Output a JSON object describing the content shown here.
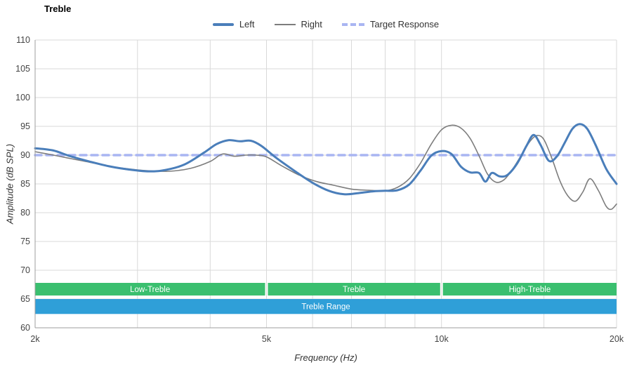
{
  "title": "Treble",
  "legend": [
    {
      "label": "Left"
    },
    {
      "label": "Right"
    },
    {
      "label": "Target Response"
    }
  ],
  "chart_data": {
    "type": "line",
    "title": "Treble",
    "xlabel": "Frequency (Hz)",
    "ylabel": "Amplitude (dB SPL)",
    "x_scale": "log",
    "xlim": [
      2000,
      20000
    ],
    "ylim": [
      60,
      110
    ],
    "y_ticks": [
      60,
      65,
      70,
      75,
      80,
      85,
      90,
      95,
      100,
      105,
      110
    ],
    "x_ticks": [
      {
        "v": 2000,
        "label": "2k"
      },
      {
        "v": 5000,
        "label": "5k"
      },
      {
        "v": 10000,
        "label": "10k"
      },
      {
        "v": 20000,
        "label": "20k"
      }
    ],
    "x_gridlines": [
      3000,
      4000,
      5000,
      6000,
      7000,
      8000,
      9000,
      10000,
      15000,
      20000
    ],
    "grid": true,
    "legend_position": "top",
    "colors": {
      "left": "#4a7eba",
      "right": "#7d7d7d",
      "target": "#a9b5f2",
      "band_green": "#3abf6f",
      "band_blue": "#2f9fd8",
      "grid": "#d9d9d9",
      "axis": "#9e9e9e",
      "text": "#444444"
    },
    "series": [
      {
        "name": "Left",
        "color": "#4a7eba",
        "width": 3,
        "x": [
          2000,
          2150,
          2300,
          2500,
          2700,
          2900,
          3100,
          3300,
          3600,
          3900,
          4100,
          4300,
          4500,
          4700,
          4900,
          5200,
          5600,
          6000,
          6400,
          6800,
          7200,
          7600,
          8000,
          8400,
          8800,
          9200,
          9600,
          10000,
          10400,
          10800,
          11200,
          11600,
          11900,
          12200,
          12600,
          13000,
          13500,
          14000,
          14400,
          14800,
          15300,
          15800,
          16300,
          16800,
          17300,
          17800,
          18400,
          19200,
          20000
        ],
        "y": [
          91.2,
          90.8,
          89.8,
          88.8,
          88.0,
          87.5,
          87.2,
          87.3,
          88.3,
          90.4,
          91.9,
          92.6,
          92.4,
          92.5,
          91.6,
          89.5,
          87.2,
          85.2,
          83.8,
          83.2,
          83.4,
          83.7,
          83.8,
          83.9,
          84.9,
          87.3,
          89.9,
          90.7,
          90.2,
          88.0,
          87.0,
          86.9,
          85.4,
          86.9,
          86.3,
          86.6,
          88.6,
          91.6,
          93.5,
          91.8,
          89.0,
          89.8,
          92.2,
          94.6,
          95.4,
          94.6,
          91.8,
          87.6,
          85.0
        ]
      },
      {
        "name": "Right",
        "color": "#7d7d7d",
        "width": 1.6,
        "x": [
          2000,
          2150,
          2300,
          2500,
          2700,
          2900,
          3100,
          3400,
          3700,
          4000,
          4200,
          4400,
          4600,
          4800,
          5000,
          5300,
          5700,
          6100,
          6500,
          7000,
          7500,
          8000,
          8400,
          8800,
          9200,
          9600,
          10000,
          10400,
          10800,
          11200,
          11600,
          12000,
          12400,
          12800,
          13200,
          13700,
          14200,
          14600,
          15000,
          15500,
          16000,
          16500,
          17000,
          17500,
          18000,
          18600,
          19200,
          19600,
          20000
        ],
        "y": [
          90.6,
          90.0,
          89.4,
          88.7,
          88.0,
          87.6,
          87.3,
          87.2,
          87.7,
          88.9,
          90.2,
          89.8,
          90.0,
          90.0,
          89.7,
          88.2,
          86.5,
          85.4,
          84.8,
          84.1,
          83.9,
          83.8,
          84.4,
          85.9,
          88.6,
          91.9,
          94.4,
          95.2,
          94.7,
          92.9,
          89.9,
          86.7,
          85.3,
          85.7,
          87.3,
          89.9,
          92.4,
          93.4,
          92.7,
          89.3,
          85.4,
          82.9,
          82.0,
          83.6,
          85.9,
          83.9,
          81.1,
          80.6,
          81.5
        ]
      },
      {
        "name": "Target Response",
        "color": "#a9b5f2",
        "width": 3.5,
        "dash": "9 7",
        "x": [
          2000,
          20000
        ],
        "y": [
          90,
          90
        ]
      }
    ],
    "bands": [
      {
        "label": "Low-Treble",
        "from": 2000,
        "to": 5000,
        "y0": 65.6,
        "y1": 67.8,
        "color": "#3abf6f"
      },
      {
        "label": "Treble",
        "from": 5000,
        "to": 10000,
        "y0": 65.6,
        "y1": 67.8,
        "color": "#3abf6f"
      },
      {
        "label": "High-Treble",
        "from": 10000,
        "to": 20000,
        "y0": 65.6,
        "y1": 67.8,
        "color": "#3abf6f"
      },
      {
        "label": "Treble Range",
        "from": 2000,
        "to": 20000,
        "y0": 62.4,
        "y1": 65.0,
        "color": "#2f9fd8"
      }
    ]
  }
}
